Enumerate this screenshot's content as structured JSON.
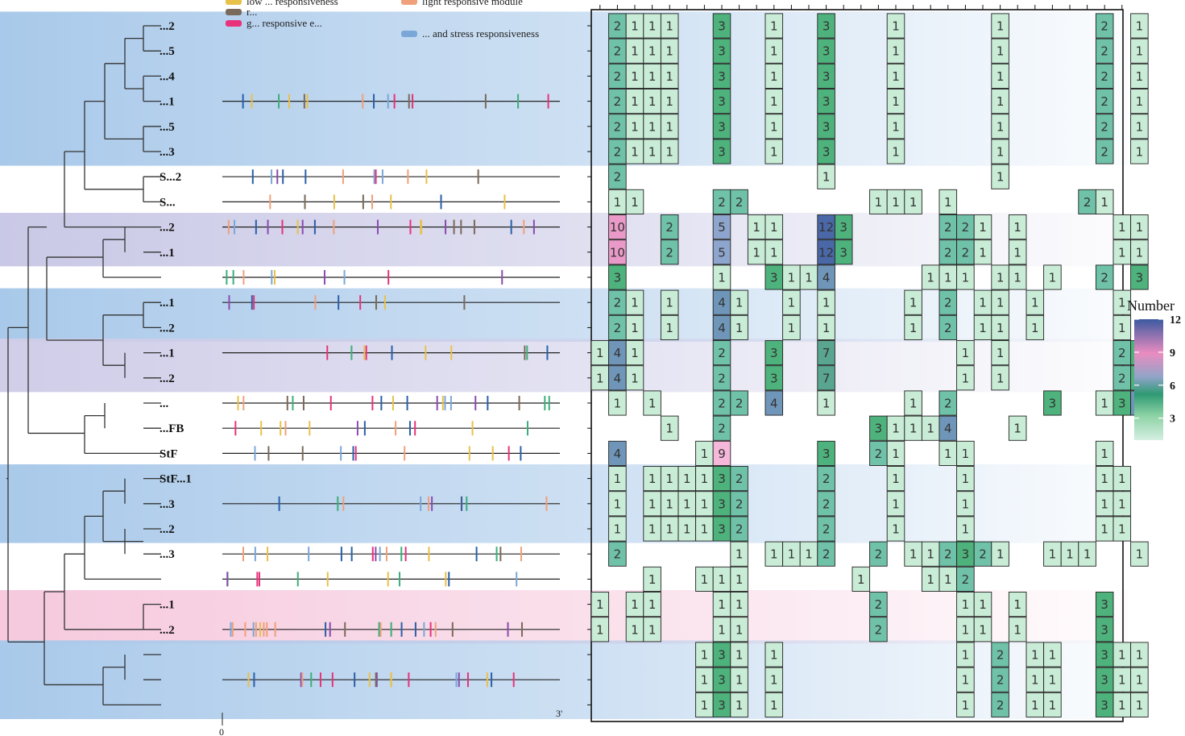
{
  "chart_data": {
    "type": "heatmap",
    "title": "",
    "legend_title": "Number",
    "colorbar_ticks": [
      3,
      6,
      9,
      12
    ],
    "color_range": [
      1,
      12
    ],
    "palette": [
      "#d4efe2",
      "#9fd8b4",
      "#4fb28b",
      "#2f8f73",
      "#8fa4c8",
      "#e3a9d0",
      "#ea8cc0",
      "#3b5aa0"
    ],
    "motif_legend": [
      {
        "label": "low ... responsiveness",
        "color": "#e8c14a"
      },
      {
        "label": "light responsive module",
        "color": "#f0a07a"
      },
      {
        "label": "r...",
        "color": "#7a6a5a"
      },
      {
        "label": "g... responsive e...",
        "color": "#e8327a"
      },
      {
        "label": "... and stress responsiveness",
        "color": "#7aa7d8"
      }
    ],
    "axis_start_label": "0",
    "axis_end_label": "3'",
    "gene_labels": [
      "...2",
      "...5",
      "...4",
      "...1",
      "...5",
      "...3",
      "S...2",
      "S...",
      "...2",
      "...1",
      "",
      "...1",
      "...2",
      "...1",
      "...2",
      "...",
      "...FB",
      "StF",
      "StF...1",
      "...3",
      "...2",
      "...3",
      "",
      "...1",
      "...2",
      "",
      "",
      ""
    ],
    "band_colors": [
      "#a9c9ea",
      "#ffffff",
      "#c9c8e6",
      "#ffffff",
      "#a9c9ea",
      "#ffffff",
      "#cfcde8",
      "#ffffff",
      "#a9c9ea",
      "#ffffff",
      "#f6c9dd",
      "#ffffff",
      "#a9c9ea"
    ],
    "rows": [
      {
        "cells": [
          [
            1,
            2
          ],
          [
            2,
            1
          ],
          [
            3,
            1
          ],
          [
            4,
            1
          ],
          [
            7,
            3
          ],
          [
            10,
            1
          ],
          [
            13,
            3
          ],
          [
            17,
            1
          ],
          [
            23,
            1
          ],
          [
            29,
            2
          ],
          [
            31,
            1
          ]
        ]
      },
      {
        "cells": [
          [
            1,
            2
          ],
          [
            2,
            1
          ],
          [
            3,
            1
          ],
          [
            4,
            1
          ],
          [
            7,
            3
          ],
          [
            10,
            1
          ],
          [
            13,
            3
          ],
          [
            17,
            1
          ],
          [
            23,
            1
          ],
          [
            29,
            2
          ],
          [
            31,
            1
          ]
        ]
      },
      {
        "cells": [
          [
            1,
            2
          ],
          [
            2,
            1
          ],
          [
            3,
            1
          ],
          [
            4,
            1
          ],
          [
            7,
            3
          ],
          [
            10,
            1
          ],
          [
            13,
            3
          ],
          [
            17,
            1
          ],
          [
            23,
            1
          ],
          [
            29,
            2
          ],
          [
            31,
            1
          ]
        ]
      },
      {
        "cells": [
          [
            1,
            2
          ],
          [
            2,
            1
          ],
          [
            3,
            1
          ],
          [
            4,
            1
          ],
          [
            7,
            3
          ],
          [
            10,
            1
          ],
          [
            13,
            3
          ],
          [
            17,
            1
          ],
          [
            23,
            1
          ],
          [
            29,
            2
          ],
          [
            31,
            1
          ]
        ]
      },
      {
        "cells": [
          [
            1,
            2
          ],
          [
            2,
            1
          ],
          [
            3,
            1
          ],
          [
            4,
            1
          ],
          [
            7,
            3
          ],
          [
            10,
            1
          ],
          [
            13,
            3
          ],
          [
            17,
            1
          ],
          [
            23,
            1
          ],
          [
            29,
            2
          ],
          [
            31,
            1
          ]
        ]
      },
      {
        "cells": [
          [
            1,
            2
          ],
          [
            2,
            1
          ],
          [
            3,
            1
          ],
          [
            4,
            1
          ],
          [
            7,
            3
          ],
          [
            10,
            1
          ],
          [
            13,
            3
          ],
          [
            17,
            1
          ],
          [
            23,
            1
          ],
          [
            29,
            2
          ],
          [
            31,
            1
          ]
        ]
      },
      {
        "cells": [
          [
            1,
            2
          ],
          [
            13,
            1
          ],
          [
            23,
            1
          ]
        ]
      },
      {
        "cells": [
          [
            1,
            1
          ],
          [
            2,
            1
          ],
          [
            7,
            2
          ],
          [
            8,
            2
          ],
          [
            16,
            1
          ],
          [
            17,
            1
          ],
          [
            18,
            1
          ],
          [
            20,
            1
          ],
          [
            28,
            2
          ],
          [
            29,
            1
          ]
        ]
      },
      {
        "cells": [
          [
            1,
            10
          ],
          [
            4,
            2
          ],
          [
            7,
            5
          ],
          [
            9,
            1
          ],
          [
            10,
            1
          ],
          [
            13,
            12
          ],
          [
            14,
            3
          ],
          [
            20,
            2
          ],
          [
            21,
            2
          ],
          [
            22,
            1
          ],
          [
            24,
            1
          ],
          [
            30,
            1
          ],
          [
            31,
            1
          ]
        ]
      },
      {
        "cells": [
          [
            1,
            10
          ],
          [
            4,
            2
          ],
          [
            7,
            5
          ],
          [
            9,
            1
          ],
          [
            10,
            1
          ],
          [
            13,
            12
          ],
          [
            14,
            3
          ],
          [
            20,
            2
          ],
          [
            21,
            2
          ],
          [
            22,
            1
          ],
          [
            24,
            1
          ],
          [
            30,
            1
          ],
          [
            31,
            1
          ]
        ]
      },
      {
        "cells": [
          [
            1,
            3
          ],
          [
            7,
            1
          ],
          [
            10,
            3
          ],
          [
            11,
            1
          ],
          [
            12,
            1
          ],
          [
            13,
            4
          ],
          [
            19,
            1
          ],
          [
            20,
            1
          ],
          [
            21,
            1
          ],
          [
            23,
            1
          ],
          [
            24,
            1
          ],
          [
            26,
            1
          ],
          [
            29,
            2
          ],
          [
            31,
            3
          ]
        ]
      },
      {
        "cells": [
          [
            1,
            2
          ],
          [
            2,
            1
          ],
          [
            4,
            1
          ],
          [
            7,
            4
          ],
          [
            8,
            1
          ],
          [
            11,
            1
          ],
          [
            13,
            1
          ],
          [
            18,
            1
          ],
          [
            20,
            2
          ],
          [
            22,
            1
          ],
          [
            23,
            1
          ],
          [
            25,
            1
          ],
          [
            30,
            1
          ]
        ]
      },
      {
        "cells": [
          [
            1,
            2
          ],
          [
            2,
            1
          ],
          [
            4,
            1
          ],
          [
            7,
            4
          ],
          [
            8,
            1
          ],
          [
            11,
            1
          ],
          [
            13,
            1
          ],
          [
            18,
            1
          ],
          [
            20,
            2
          ],
          [
            22,
            1
          ],
          [
            23,
            1
          ],
          [
            25,
            1
          ],
          [
            30,
            1
          ]
        ]
      },
      {
        "cells": [
          [
            0,
            1
          ],
          [
            1,
            4
          ],
          [
            2,
            1
          ],
          [
            7,
            2
          ],
          [
            10,
            3
          ],
          [
            13,
            7
          ],
          [
            21,
            1
          ],
          [
            23,
            1
          ],
          [
            30,
            2
          ],
          [
            31,
            3
          ]
        ]
      },
      {
        "cells": [
          [
            0,
            1
          ],
          [
            1,
            4
          ],
          [
            2,
            1
          ],
          [
            7,
            2
          ],
          [
            10,
            3
          ],
          [
            13,
            7
          ],
          [
            21,
            1
          ],
          [
            23,
            1
          ],
          [
            30,
            2
          ],
          [
            31,
            3
          ]
        ]
      },
      {
        "cells": [
          [
            1,
            1
          ],
          [
            3,
            1
          ],
          [
            7,
            2
          ],
          [
            8,
            2
          ],
          [
            10,
            4
          ],
          [
            13,
            1
          ],
          [
            18,
            1
          ],
          [
            20,
            2
          ],
          [
            26,
            3
          ],
          [
            29,
            1
          ],
          [
            30,
            3
          ],
          [
            31,
            4
          ]
        ]
      },
      {
        "cells": [
          [
            4,
            1
          ],
          [
            7,
            2
          ],
          [
            16,
            3
          ],
          [
            17,
            1
          ],
          [
            18,
            1
          ],
          [
            19,
            1
          ],
          [
            20,
            4
          ],
          [
            24,
            1
          ]
        ]
      },
      {
        "cells": [
          [
            1,
            4
          ],
          [
            6,
            1
          ],
          [
            7,
            9
          ],
          [
            13,
            3
          ],
          [
            16,
            2
          ],
          [
            17,
            1
          ],
          [
            20,
            1
          ],
          [
            21,
            1
          ],
          [
            29,
            1
          ]
        ]
      },
      {
        "cells": [
          [
            1,
            1
          ],
          [
            3,
            1
          ],
          [
            4,
            1
          ],
          [
            5,
            1
          ],
          [
            6,
            1
          ],
          [
            7,
            3
          ],
          [
            8,
            2
          ],
          [
            13,
            2
          ],
          [
            17,
            1
          ],
          [
            21,
            1
          ],
          [
            29,
            1
          ],
          [
            30,
            1
          ]
        ]
      },
      {
        "cells": [
          [
            1,
            1
          ],
          [
            3,
            1
          ],
          [
            4,
            1
          ],
          [
            5,
            1
          ],
          [
            6,
            1
          ],
          [
            7,
            3
          ],
          [
            8,
            2
          ],
          [
            13,
            2
          ],
          [
            17,
            1
          ],
          [
            21,
            1
          ],
          [
            29,
            1
          ],
          [
            30,
            1
          ]
        ]
      },
      {
        "cells": [
          [
            1,
            1
          ],
          [
            3,
            1
          ],
          [
            4,
            1
          ],
          [
            5,
            1
          ],
          [
            6,
            1
          ],
          [
            7,
            3
          ],
          [
            8,
            2
          ],
          [
            13,
            2
          ],
          [
            17,
            1
          ],
          [
            21,
            1
          ],
          [
            29,
            1
          ],
          [
            30,
            1
          ]
        ]
      },
      {
        "cells": [
          [
            1,
            2
          ],
          [
            8,
            1
          ],
          [
            10,
            1
          ],
          [
            11,
            1
          ],
          [
            12,
            1
          ],
          [
            13,
            2
          ],
          [
            16,
            2
          ],
          [
            18,
            1
          ],
          [
            19,
            1
          ],
          [
            20,
            2
          ],
          [
            21,
            3
          ],
          [
            22,
            2
          ],
          [
            23,
            1
          ],
          [
            26,
            1
          ],
          [
            27,
            1
          ],
          [
            28,
            1
          ],
          [
            31,
            1
          ]
        ]
      },
      {
        "cells": [
          [
            3,
            1
          ],
          [
            6,
            1
          ],
          [
            7,
            1
          ],
          [
            8,
            1
          ],
          [
            15,
            1
          ],
          [
            19,
            1
          ],
          [
            20,
            1
          ],
          [
            21,
            2
          ]
        ]
      },
      {
        "cells": [
          [
            0,
            1
          ],
          [
            2,
            1
          ],
          [
            3,
            1
          ],
          [
            7,
            1
          ],
          [
            8,
            1
          ],
          [
            16,
            2
          ],
          [
            21,
            1
          ],
          [
            22,
            1
          ],
          [
            24,
            1
          ],
          [
            29,
            3
          ]
        ]
      },
      {
        "cells": [
          [
            0,
            1
          ],
          [
            2,
            1
          ],
          [
            3,
            1
          ],
          [
            7,
            1
          ],
          [
            8,
            1
          ],
          [
            16,
            2
          ],
          [
            21,
            1
          ],
          [
            22,
            1
          ],
          [
            24,
            1
          ],
          [
            29,
            3
          ]
        ]
      },
      {
        "cells": [
          [
            6,
            1
          ],
          [
            7,
            3
          ],
          [
            8,
            1
          ],
          [
            10,
            1
          ],
          [
            21,
            1
          ],
          [
            23,
            2
          ],
          [
            25,
            1
          ],
          [
            26,
            1
          ],
          [
            29,
            3
          ],
          [
            30,
            1
          ],
          [
            31,
            1
          ]
        ]
      },
      {
        "cells": [
          [
            6,
            1
          ],
          [
            7,
            3
          ],
          [
            8,
            1
          ],
          [
            10,
            1
          ],
          [
            21,
            1
          ],
          [
            23,
            2
          ],
          [
            25,
            1
          ],
          [
            26,
            1
          ],
          [
            29,
            3
          ],
          [
            30,
            1
          ],
          [
            31,
            1
          ]
        ]
      },
      {
        "cells": [
          [
            6,
            1
          ],
          [
            7,
            3
          ],
          [
            8,
            1
          ],
          [
            10,
            1
          ],
          [
            21,
            1
          ],
          [
            23,
            2
          ],
          [
            25,
            1
          ],
          [
            26,
            1
          ],
          [
            29,
            3
          ],
          [
            30,
            1
          ],
          [
            31,
            1
          ]
        ]
      }
    ]
  }
}
